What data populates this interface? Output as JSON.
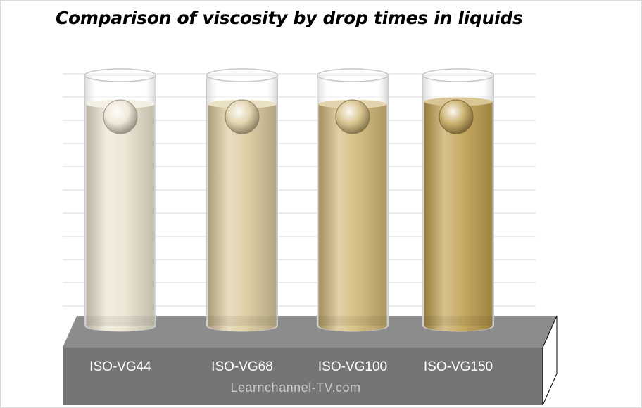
{
  "chart_data": {
    "type": "bar",
    "title": "Comparison of viscosity by drop times in liquids",
    "xlabel": "",
    "ylabel": "",
    "grid": true,
    "categories": [
      "ISO-VG44",
      "ISO-VG68",
      "ISO-VG100",
      "ISO-VG150"
    ],
    "series": [
      {
        "values": [
          87,
          87,
          87,
          88
        ]
      }
    ],
    "ylim": [
      0,
      100
    ],
    "liquid_colors": [
      "#ece5d0",
      "#dccb9c",
      "#d2b877",
      "#c1a04f"
    ],
    "bar_style": "glass-cylinders",
    "credit": "Learnchannel-TV.com"
  }
}
